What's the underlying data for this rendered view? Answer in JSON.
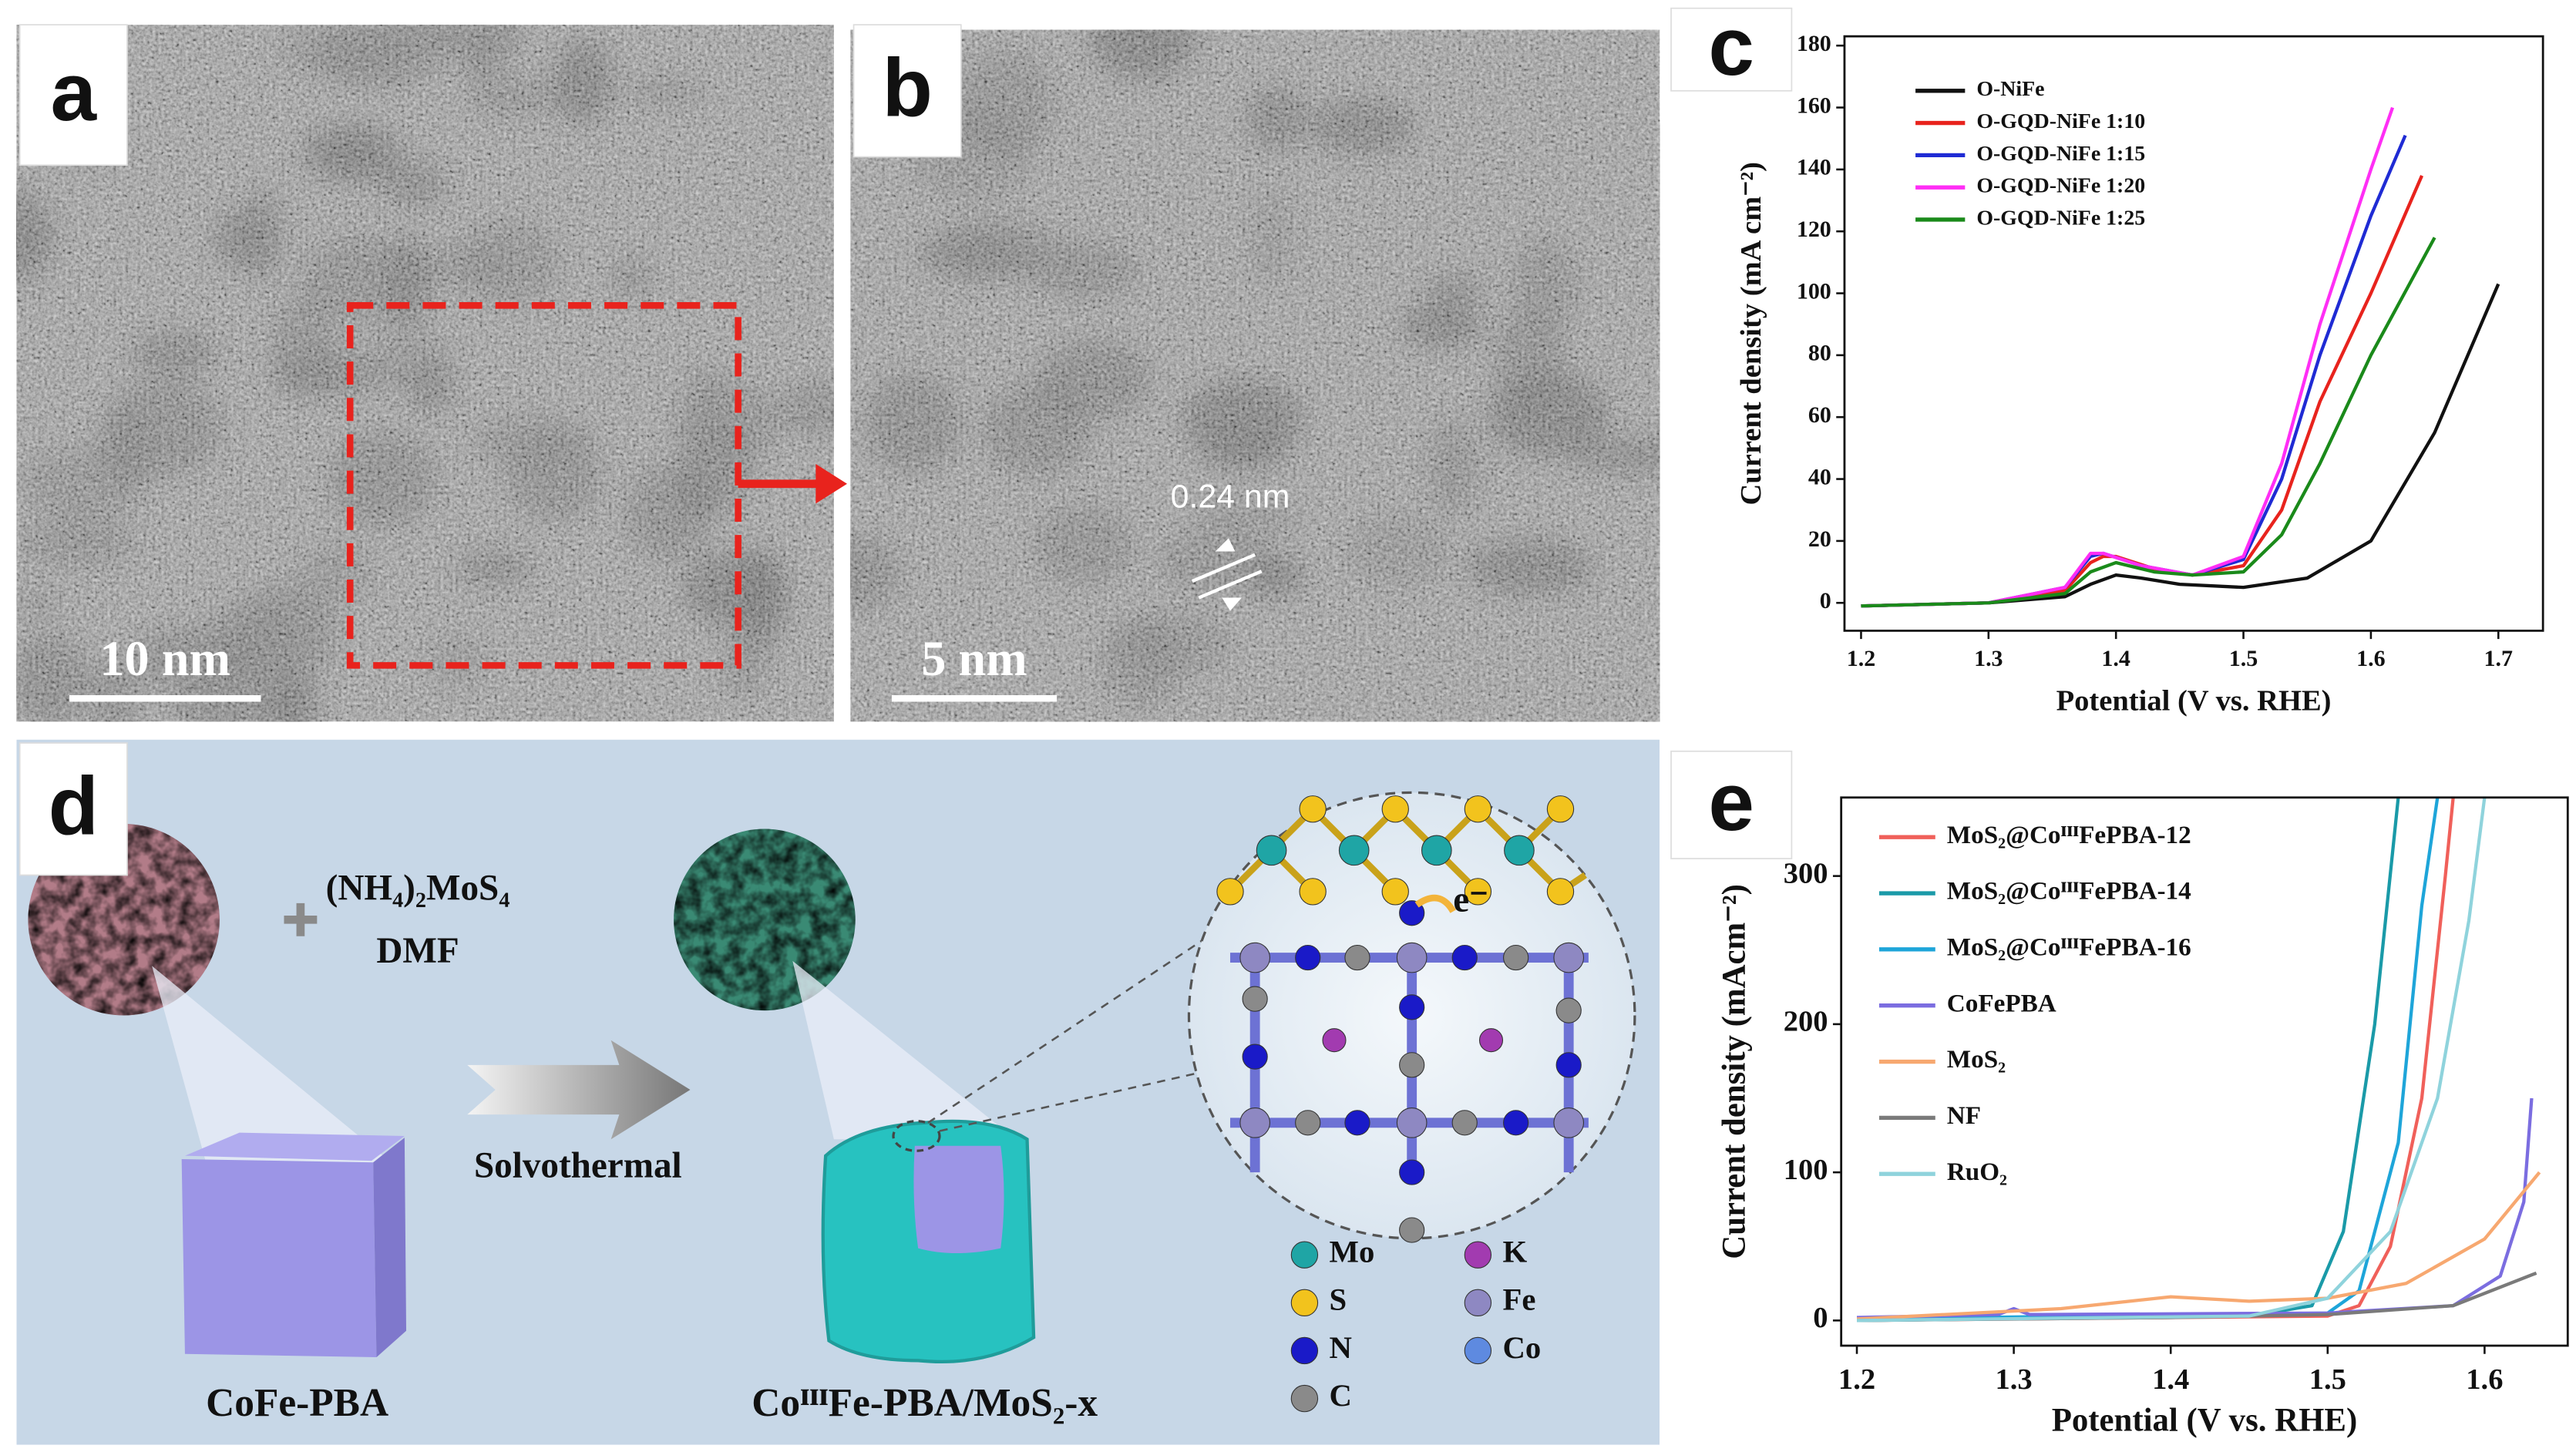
{
  "panel_labels": [
    "a",
    "b",
    "c",
    "d",
    "e"
  ],
  "tem": {
    "scale_a": "10 nm",
    "scale_b": "5 nm",
    "lattice": "0.24 nm"
  },
  "schematic": {
    "reagent": "(NH₄)₂MoS₄",
    "solvent": "DMF",
    "process": "Solvothermal",
    "start": "CoFe-PBA",
    "product": "CoᴵᴵᴵFe-PBA/MoS₂-x",
    "electron": "e⁻",
    "legend": [
      "Mo",
      "K",
      "S",
      "Fe",
      "N",
      "Co",
      "C"
    ]
  },
  "chart_data": [
    {
      "type": "line",
      "x_label": "Potential (V vs. RHE)",
      "y_label": "Current density (mA cm⁻²)",
      "xlim": [
        1.187,
        1.735
      ],
      "ylim": [
        -9,
        183
      ],
      "xticks": [
        1.2,
        1.3,
        1.4,
        1.5,
        1.6,
        1.7
      ],
      "yticks": [
        0,
        20,
        40,
        60,
        80,
        100,
        120,
        140,
        160,
        180
      ],
      "legend": "upper left",
      "frame": true,
      "series": [
        {
          "name": "O-NiFe",
          "color": "#111111",
          "x": [
            1.2,
            1.3,
            1.36,
            1.38,
            1.4,
            1.42,
            1.45,
            1.5,
            1.55,
            1.6,
            1.65,
            1.7
          ],
          "values": [
            -1,
            0,
            2,
            6,
            9,
            8,
            6,
            5,
            8,
            20,
            55,
            103
          ]
        },
        {
          "name": "O-GQD-NiFe 1:10",
          "color": "#e8231d",
          "x": [
            1.2,
            1.3,
            1.36,
            1.38,
            1.39,
            1.4,
            1.43,
            1.46,
            1.5,
            1.53,
            1.56,
            1.6,
            1.64
          ],
          "values": [
            -1,
            0,
            4,
            13,
            15,
            15,
            11,
            9,
            12,
            30,
            65,
            100,
            138
          ]
        },
        {
          "name": "O-GQD-NiFe 1:15",
          "color": "#1f2bd4",
          "x": [
            1.2,
            1.3,
            1.36,
            1.38,
            1.39,
            1.42,
            1.46,
            1.5,
            1.53,
            1.56,
            1.6,
            1.627
          ],
          "values": [
            -1,
            0,
            5,
            15,
            16,
            12,
            9,
            14,
            40,
            80,
            125,
            151
          ]
        },
        {
          "name": "O-GQD-NiFe 1:20",
          "color": "#ff2ef5",
          "x": [
            1.2,
            1.3,
            1.36,
            1.38,
            1.39,
            1.42,
            1.46,
            1.5,
            1.53,
            1.56,
            1.6,
            1.617
          ],
          "values": [
            -1,
            0,
            5,
            16,
            16,
            12,
            9,
            15,
            45,
            90,
            140,
            160
          ]
        },
        {
          "name": "O-GQD-NiFe 1:25",
          "color": "#1a8a1a",
          "x": [
            1.2,
            1.3,
            1.36,
            1.38,
            1.4,
            1.43,
            1.46,
            1.5,
            1.53,
            1.56,
            1.6,
            1.65
          ],
          "values": [
            -1,
            0,
            3,
            10,
            13,
            10,
            9,
            10,
            22,
            45,
            80,
            118
          ]
        }
      ]
    },
    {
      "type": "line",
      "x_label": "Potential (V vs. RHE)",
      "y_label": "Current density (mAcm⁻²)",
      "xlim": [
        1.19,
        1.653
      ],
      "ylim": [
        -17,
        353
      ],
      "xticks": [
        1.2,
        1.3,
        1.4,
        1.5,
        1.6
      ],
      "yticks": [
        0,
        100,
        200,
        300
      ],
      "legend": "upper left",
      "frame": true,
      "series": [
        {
          "name": "MoS₂@CoᴵᴵᴵFePBA-12",
          "color": "#f0605a",
          "x": [
            1.2,
            1.5,
            1.52,
            1.54,
            1.56,
            1.575,
            1.58
          ],
          "values": [
            0,
            3,
            10,
            50,
            150,
            300,
            353
          ]
        },
        {
          "name": "MoS₂@CoᴵᴵᴵFePBA-14",
          "color": "#1a9aa8",
          "x": [
            1.2,
            1.45,
            1.49,
            1.51,
            1.53,
            1.545
          ],
          "values": [
            0,
            3,
            10,
            60,
            200,
            353
          ]
        },
        {
          "name": "MoS₂@CoᴵᴵᴵFePBA-16",
          "color": "#1ea5d9",
          "x": [
            1.2,
            1.5,
            1.52,
            1.545,
            1.56,
            1.57
          ],
          "values": [
            1,
            5,
            20,
            120,
            280,
            353
          ]
        },
        {
          "name": "CoFePBA",
          "color": "#7b6de0",
          "x": [
            1.2,
            1.29,
            1.3,
            1.31,
            1.5,
            1.58,
            1.61,
            1.625,
            1.63
          ],
          "values": [
            2,
            4,
            8,
            4,
            5,
            10,
            30,
            80,
            150
          ]
        },
        {
          "name": "MoS₂",
          "color": "#f7a870",
          "x": [
            1.2,
            1.33,
            1.4,
            1.45,
            1.5,
            1.55,
            1.6,
            1.635
          ],
          "values": [
            1,
            8,
            16,
            13,
            15,
            25,
            55,
            100
          ]
        },
        {
          "name": "NF",
          "color": "#7a7a7a",
          "x": [
            1.2,
            1.4,
            1.5,
            1.58,
            1.633
          ],
          "values": [
            0,
            2,
            4,
            10,
            32
          ]
        },
        {
          "name": "RuO₂",
          "color": "#8fd3dc",
          "x": [
            1.2,
            1.45,
            1.5,
            1.54,
            1.57,
            1.59,
            1.6
          ],
          "values": [
            0,
            3,
            15,
            60,
            150,
            270,
            353
          ]
        }
      ]
    }
  ]
}
